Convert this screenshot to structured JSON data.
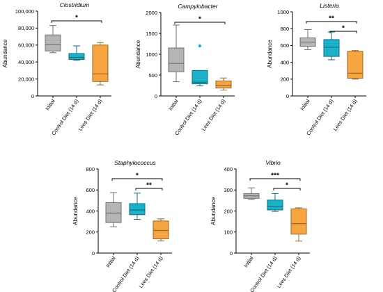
{
  "chart_data": [
    {
      "type": "box",
      "title": "Clostridium",
      "ylabel": "Abundance",
      "ylim": [
        0,
        100000
      ],
      "yticks": [
        0,
        20000,
        40000,
        60000,
        80000,
        100000
      ],
      "ytick_labels": [
        "0",
        "20,000",
        "40,000",
        "60,000",
        "80,000",
        "100,000"
      ],
      "categories": [
        "Initial",
        "Control Diet (14 d)",
        "Lees Diet (14 d)"
      ],
      "colors": [
        "#b5b5b5",
        "#1ab1c9",
        "#f7a541"
      ],
      "boxes": [
        {
          "min": 51000,
          "q1": 53000,
          "median": 61000,
          "q3": 72000,
          "max": 83000,
          "outliers": []
        },
        {
          "min": 42000,
          "q1": 43000,
          "median": 45500,
          "q3": 50000,
          "max": 59000,
          "outliers": []
        },
        {
          "min": 13000,
          "q1": 17000,
          "median": 26000,
          "q3": 60000,
          "max": 63000,
          "outliers": []
        }
      ],
      "significance": [
        {
          "from": 0,
          "to": 2,
          "label": "*"
        }
      ]
    },
    {
      "type": "box",
      "title": "Campylobacter",
      "ylabel": "Abundance",
      "ylim": [
        0,
        2000
      ],
      "yticks": [
        0,
        500,
        1000,
        1500,
        2000
      ],
      "ytick_labels": [
        "0",
        "500",
        "1000",
        "1500",
        "2000"
      ],
      "categories": [
        "Initial",
        "Control Diet (14 d)",
        "Lees Diet (14 d)"
      ],
      "colors": [
        "#b5b5b5",
        "#1ab1c9",
        "#f7a541"
      ],
      "boxes": [
        {
          "min": 340,
          "q1": 580,
          "median": 780,
          "q3": 1150,
          "max": 1700,
          "outliers": []
        },
        {
          "min": 240,
          "q1": 290,
          "median": 330,
          "q3": 610,
          "max": 610,
          "outliers": [
            1200
          ]
        },
        {
          "min": 140,
          "q1": 190,
          "median": 250,
          "q3": 360,
          "max": 430,
          "outliers": []
        }
      ],
      "significance": [
        {
          "from": 0,
          "to": 2,
          "label": "*"
        }
      ]
    },
    {
      "type": "box",
      "title": "Listeria",
      "ylabel": "Abundance",
      "ylim": [
        0,
        1000
      ],
      "yticks": [
        0,
        200,
        400,
        600,
        800,
        1000
      ],
      "ytick_labels": [
        "0",
        "200",
        "400",
        "600",
        "800",
        "1000"
      ],
      "categories": [
        "Initial",
        "Control Diet (14 d)",
        "Lees Diet (14 d)"
      ],
      "colors": [
        "#b5b5b5",
        "#1ab1c9",
        "#f7a541"
      ],
      "boxes": [
        {
          "min": 550,
          "q1": 590,
          "median": 640,
          "q3": 690,
          "max": 790,
          "outliers": []
        },
        {
          "min": 430,
          "q1": 470,
          "median": 580,
          "q3": 670,
          "max": 760,
          "outliers": []
        },
        {
          "min": 200,
          "q1": 210,
          "median": 270,
          "q3": 530,
          "max": 540,
          "outliers": []
        }
      ],
      "significance": [
        {
          "from": 0,
          "to": 2,
          "label": "**"
        },
        {
          "from": 1,
          "to": 2,
          "label": "*"
        }
      ]
    },
    {
      "type": "box",
      "title": "Staphylococcus",
      "ylabel": "Abundance",
      "ylim": [
        0,
        800
      ],
      "yticks": [
        0,
        200,
        400,
        600,
        800
      ],
      "ytick_labels": [
        "0",
        "200",
        "400",
        "600",
        "800"
      ],
      "categories": [
        "Initial",
        "Control Diet (14 d)",
        "Lees Diet (14 d)"
      ],
      "colors": [
        "#b5b5b5",
        "#1ab1c9",
        "#f7a541"
      ],
      "boxes": [
        {
          "min": 250,
          "q1": 290,
          "median": 380,
          "q3": 480,
          "max": 575,
          "outliers": []
        },
        {
          "min": 320,
          "q1": 365,
          "median": 410,
          "q3": 470,
          "max": 570,
          "outliers": []
        },
        {
          "min": 115,
          "q1": 135,
          "median": 215,
          "q3": 305,
          "max": 325,
          "outliers": []
        }
      ],
      "significance": [
        {
          "from": 0,
          "to": 2,
          "label": "*"
        },
        {
          "from": 1,
          "to": 2,
          "label": "**"
        }
      ]
    },
    {
      "type": "box",
      "title": "Vibrio",
      "ylabel": "Abundance",
      "ylim": [
        0,
        400
      ],
      "yticks": [
        0,
        100,
        200,
        300,
        400
      ],
      "ytick_labels": [
        "0",
        "100",
        "200",
        "300",
        "400"
      ],
      "categories": [
        "Initial",
        "Control Diet (14 d)",
        "Lees Diet (14 d)"
      ],
      "colors": [
        "#b5b5b5",
        "#1ab1c9",
        "#f7a541"
      ],
      "boxes": [
        {
          "min": 255,
          "q1": 260,
          "median": 272,
          "q3": 283,
          "max": 310,
          "outliers": []
        },
        {
          "min": 198,
          "q1": 205,
          "median": 220,
          "q3": 252,
          "max": 283,
          "outliers": []
        },
        {
          "min": 57,
          "q1": 90,
          "median": 140,
          "q3": 210,
          "max": 215,
          "outliers": []
        }
      ],
      "significance": [
        {
          "from": 0,
          "to": 2,
          "label": "***"
        },
        {
          "from": 1,
          "to": 2,
          "label": "*"
        }
      ]
    }
  ]
}
